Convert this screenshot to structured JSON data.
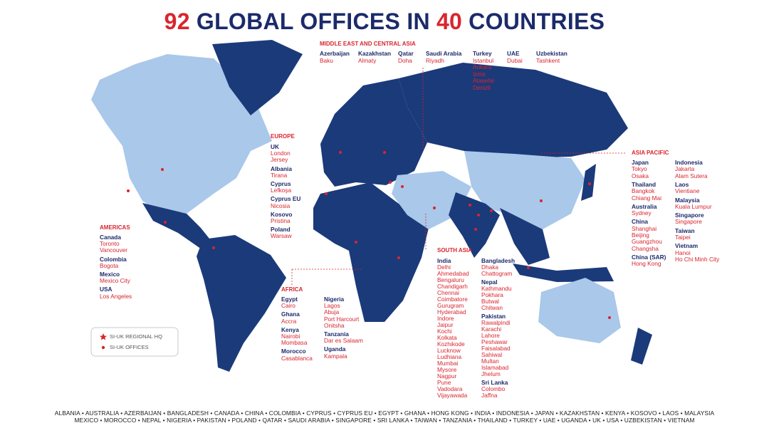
{
  "title": {
    "num1": "92",
    "text1": "GLOBAL OFFICES IN",
    "num2": "40",
    "text2": "COUNTRIES"
  },
  "regions": [
    {
      "title": "MIDDLE EAST AND CENTRAL ASIA",
      "columns": [
        [
          {
            "country": "Azerbaijan",
            "cities": [
              "Baku"
            ]
          }
        ],
        [
          {
            "country": "Kazakhstan",
            "cities": [
              "Almaty"
            ]
          }
        ],
        [
          {
            "country": "Qatar",
            "cities": [
              "Doha"
            ]
          }
        ],
        [
          {
            "country": "Saudi Arabia",
            "cities": [
              "Riyadh"
            ]
          }
        ],
        [
          {
            "country": "Turkey",
            "cities": [
              "Istanbul",
              "Ankara",
              "Izmir",
              "Atasehir",
              "Denizli"
            ]
          }
        ],
        [
          {
            "country": "UAE",
            "cities": [
              "Dubai"
            ]
          }
        ],
        [
          {
            "country": "Uzbekistan",
            "cities": [
              "Tashkent"
            ]
          }
        ]
      ]
    },
    {
      "title": "EUROPE",
      "columns": [
        [
          {
            "country": "UK",
            "cities": [
              "London",
              "Jersey"
            ]
          },
          {
            "country": "Albania",
            "cities": [
              "Tirana"
            ]
          },
          {
            "country": "Cyprus",
            "cities": [
              "Lefkoşa"
            ]
          },
          {
            "country": "Cyprus EU",
            "cities": [
              "Nicosia"
            ]
          },
          {
            "country": "Kosovo",
            "cities": [
              "Pristina"
            ]
          },
          {
            "country": "Poland",
            "cities": [
              "Warsaw"
            ]
          }
        ]
      ]
    },
    {
      "title": "AMERICAS",
      "columns": [
        [
          {
            "country": "Canada",
            "cities": [
              "Toronto",
              "Vancouver"
            ]
          },
          {
            "country": "Colombia",
            "cities": [
              "Bogota"
            ]
          },
          {
            "country": "Mexico",
            "cities": [
              "Mexico City"
            ]
          },
          {
            "country": "USA",
            "cities": [
              "Los Angeles"
            ]
          }
        ]
      ]
    },
    {
      "title": "AFRICA",
      "columns": [
        [
          {
            "country": "Egypt",
            "cities": [
              "Cairo"
            ]
          },
          {
            "country": "Ghana",
            "cities": [
              "Accra"
            ]
          },
          {
            "country": "Kenya",
            "cities": [
              "Nairobi",
              "Mombasa"
            ]
          },
          {
            "country": "Morocco",
            "cities": [
              "Casablanca"
            ]
          }
        ],
        [
          {
            "country": "Nigeria",
            "cities": [
              "Lagos",
              "Abuja",
              "Port Harcourt",
              "Onitsha"
            ]
          },
          {
            "country": "Tanzania",
            "cities": [
              "Dar es Salaam"
            ]
          },
          {
            "country": "Uganda",
            "cities": [
              "Kampala"
            ]
          }
        ]
      ]
    },
    {
      "title": "SOUTH ASIA",
      "columns": [
        [
          {
            "country": "India",
            "cities": [
              "Delhi",
              "Ahmedabad",
              "Bengaluru",
              "Chandigarh",
              "Chennai",
              "Coimbatore",
              "Gurugram",
              "Hyderabad",
              "Indore",
              "Jaipur",
              "Kochi",
              "Kolkata",
              "Kozhikode",
              "Lucknow",
              "Ludhiana",
              "Mumbai",
              "Mysore",
              "Nagpur",
              "Pune",
              "Vadodara",
              "Vijayawada"
            ]
          }
        ],
        [
          {
            "country": "Bangladesh",
            "cities": [
              "Dhaka",
              "Chattogram"
            ]
          },
          {
            "country": "Nepal",
            "cities": [
              "Kathmandu",
              "Pokhara",
              "Butwal",
              "Chitwan"
            ]
          },
          {
            "country": "Pakistan",
            "cities": [
              "Rawalpindi",
              "Karachi",
              "Lahore",
              "Peshawar",
              "Faisalabad",
              "Sahiwal",
              "Multan",
              "Islamabad",
              "Jhelum"
            ]
          },
          {
            "country": "Sri Lanka",
            "cities": [
              "Colombo",
              "Jaffna"
            ]
          }
        ]
      ]
    },
    {
      "title": "ASIA PACIFIC",
      "columns": [
        [
          {
            "country": "Japan",
            "cities": [
              "Tokyo",
              "Osaka"
            ]
          },
          {
            "country": "Thailand",
            "cities": [
              "Bangkok",
              "Chiang Mai"
            ]
          },
          {
            "country": "Australia",
            "cities": [
              "Sydney"
            ]
          },
          {
            "country": "China",
            "cities": [
              "Shanghai",
              "Beijing",
              "Guangzhou",
              "Changsha"
            ]
          },
          {
            "country": "China (SAR)",
            "cities": [
              "Hong Kong"
            ]
          }
        ],
        [
          {
            "country": "Indonesia",
            "cities": [
              "Jakarta",
              "Alam Sutera"
            ]
          },
          {
            "country": "Laos",
            "cities": [
              "Vientiane"
            ]
          },
          {
            "country": "Malaysia",
            "cities": [
              "Kuala Lumpur"
            ]
          },
          {
            "country": "Singapore",
            "cities": [
              "Singapore"
            ]
          },
          {
            "country": "Taiwan",
            "cities": [
              "Taipei"
            ]
          },
          {
            "country": "Vietnam",
            "cities": [
              "Hanoi",
              "Ho Chi Minh City"
            ]
          }
        ]
      ]
    }
  ],
  "legend": {
    "hq": "SI-UK REGIONAL HQ",
    "offices": "SI-UK OFFICES"
  },
  "footer": {
    "line1": "ALBANIA • AUSTRALIA • AZERBAIJAN • BANGLADESH • CANADA • CHINA • COLOMBIA • CYPRUS • CYPRUS EU • EGYPT • GHANA • HONG KONG • INDIA • INDONESIA • JAPAN • KAZAKHSTAN • KENYA • KOSOVO • LAOS • MALAYSIA",
    "line2": "MEXICO • MOROCCO • NEPAL • NIGERIA • PAKISTAN • POLAND • QATAR • SAUDI ARABIA • SINGAPORE • SRI LANKA • TAIWAN • TANZANIA • THAILAND • TURKEY • UAE • UGANDA • UK • USA • UZBEKISTAN • VIETNAM"
  }
}
